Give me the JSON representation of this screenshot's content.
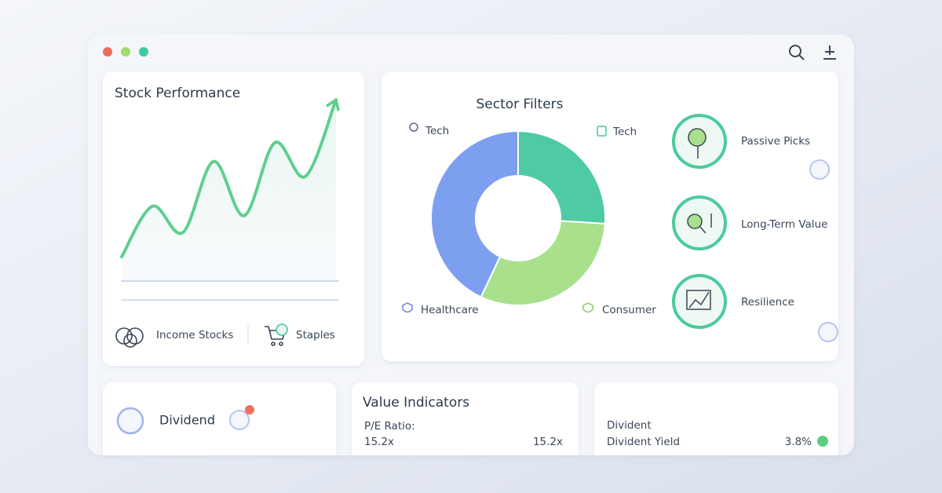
{
  "chart_data": [
    {
      "type": "line",
      "title": "Stock Performance",
      "values": [
        13,
        40,
        26,
        64,
        35,
        74,
        56,
        97
      ],
      "color": "#5fcf8e",
      "ylim": [
        0,
        100
      ]
    },
    {
      "type": "pie",
      "title": "Sector Filters",
      "values": [
        26,
        31,
        43
      ],
      "colors": [
        "#4ecaa4",
        "#a8e08c",
        "#7d9ff0"
      ]
    }
  ],
  "stock_tags": [
    "Income Stocks",
    "Staples"
  ],
  "sector_labels": [
    "Tech",
    "Tech",
    "Healthcare",
    "Consumer"
  ],
  "picks": [
    "Passive Picks",
    "Long-Term Value",
    "Resilience"
  ],
  "dividend": {
    "label": "Dividend"
  },
  "value_indicators": {
    "title": "Value Indicators",
    "label": "P/E Ratio:",
    "value_left": "15.2x",
    "value_right": "15.2x"
  },
  "divident": {
    "title": "Divident",
    "label": "Divident Yield",
    "value": "3.8%"
  }
}
